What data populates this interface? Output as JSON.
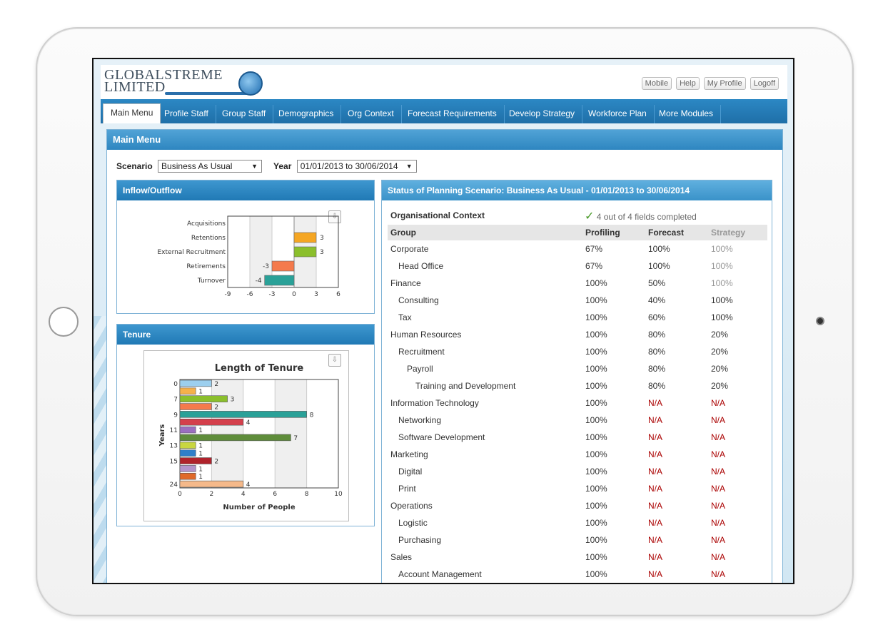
{
  "header": {
    "logo_line1": "GLOBALSTREME",
    "logo_line2": "LIMITED",
    "links": [
      "Mobile",
      "Help",
      "My Profile",
      "Logoff"
    ]
  },
  "nav": {
    "tabs": [
      "Main Menu",
      "Profile Staff",
      "Group Staff",
      "Demographics",
      "Org Context",
      "Forecast Requirements",
      "Develop Strategy",
      "Workforce Plan",
      "More Modules"
    ],
    "active_index": 0
  },
  "main": {
    "title": "Main Menu",
    "scenario_label": "Scenario",
    "scenario_value": "Business As Usual",
    "year_label": "Year",
    "year_value": "01/01/2013 to 30/06/2014"
  },
  "inflow": {
    "title": "Inflow/Outflow",
    "chart_data": {
      "type": "bar",
      "orientation": "horizontal",
      "categories": [
        "Acquisitions",
        "Retentions",
        "External Recruitment",
        "Retirements",
        "Turnover"
      ],
      "values": [
        0,
        3,
        3,
        -3,
        -4
      ],
      "xlim": [
        -9,
        6
      ],
      "xticks": [
        "-9",
        "-6",
        "-3",
        "0",
        "3",
        "6"
      ],
      "colors": [
        "#f39c12",
        "#f5a623",
        "#8bbf2c",
        "#f47a4c",
        "#2aa198"
      ]
    }
  },
  "tenure": {
    "title": "Tenure",
    "chart_data": {
      "type": "bar",
      "orientation": "horizontal",
      "title": "Length of Tenure",
      "xlabel": "Number of People",
      "ylabel": "Years",
      "xlim": [
        0,
        10
      ],
      "xticks": [
        "0",
        "2",
        "4",
        "6",
        "8",
        "10"
      ],
      "bars": [
        {
          "label": "0",
          "value": 2,
          "color": "#9ccfee"
        },
        {
          "label": "",
          "value": 1,
          "color": "#f5b14b"
        },
        {
          "label": "7",
          "value": 3,
          "color": "#8bbf2c"
        },
        {
          "label": "",
          "value": 2,
          "color": "#f47a4c"
        },
        {
          "label": "9",
          "value": 8,
          "color": "#2aa198"
        },
        {
          "label": "",
          "value": 4,
          "color": "#d4404c"
        },
        {
          "label": "11",
          "value": 1,
          "color": "#9b6fc0"
        },
        {
          "label": "",
          "value": 7,
          "color": "#5f8d3b"
        },
        {
          "label": "13",
          "value": 1,
          "color": "#c9d640"
        },
        {
          "label": "",
          "value": 1,
          "color": "#2f7fc9"
        },
        {
          "label": "15",
          "value": 2,
          "color": "#b0232c"
        },
        {
          "label": "",
          "value": 1,
          "color": "#b494cc"
        },
        {
          "label": "",
          "value": 1,
          "color": "#e06a2a"
        },
        {
          "label": "24",
          "value": 4,
          "color": "#f5b98a"
        }
      ]
    }
  },
  "status": {
    "title": "Status of Planning Scenario: Business As Usual - 01/01/2013 to 30/06/2014",
    "org_context_label": "Organisational Context",
    "org_context_status": "4 out of 4 fields completed",
    "columns": [
      "Group",
      "Profiling",
      "Forecast",
      "Strategy"
    ],
    "rows": [
      {
        "group": "Corporate",
        "level": 0,
        "profiling": "67%",
        "forecast": "100%",
        "strategy": "100%",
        "strategy_muted": true
      },
      {
        "group": "Head Office",
        "level": 1,
        "profiling": "67%",
        "forecast": "100%",
        "strategy": "100%",
        "strategy_muted": true
      },
      {
        "group": "Finance",
        "level": 0,
        "profiling": "100%",
        "forecast": "50%",
        "strategy": "100%",
        "strategy_muted": true
      },
      {
        "group": "Consulting",
        "level": 1,
        "profiling": "100%",
        "forecast": "40%",
        "strategy": "100%"
      },
      {
        "group": "Tax",
        "level": 1,
        "profiling": "100%",
        "forecast": "60%",
        "strategy": "100%"
      },
      {
        "group": "Human Resources",
        "level": 0,
        "profiling": "100%",
        "forecast": "80%",
        "strategy": "20%"
      },
      {
        "group": "Recruitment",
        "level": 1,
        "profiling": "100%",
        "forecast": "80%",
        "strategy": "20%"
      },
      {
        "group": "Payroll",
        "level": 2,
        "profiling": "100%",
        "forecast": "80%",
        "strategy": "20%"
      },
      {
        "group": "Training and Development",
        "level": 3,
        "profiling": "100%",
        "forecast": "80%",
        "strategy": "20%"
      },
      {
        "group": "Information Technology",
        "level": 0,
        "profiling": "100%",
        "forecast": "N/A",
        "strategy": "N/A"
      },
      {
        "group": "Networking",
        "level": 1,
        "profiling": "100%",
        "forecast": "N/A",
        "strategy": "N/A"
      },
      {
        "group": "Software Development",
        "level": 1,
        "profiling": "100%",
        "forecast": "N/A",
        "strategy": "N/A"
      },
      {
        "group": "Marketing",
        "level": 0,
        "profiling": "100%",
        "forecast": "N/A",
        "strategy": "N/A"
      },
      {
        "group": "Digital",
        "level": 1,
        "profiling": "100%",
        "forecast": "N/A",
        "strategy": "N/A"
      },
      {
        "group": "Print",
        "level": 1,
        "profiling": "100%",
        "forecast": "N/A",
        "strategy": "N/A"
      },
      {
        "group": "Operations",
        "level": 0,
        "profiling": "100%",
        "forecast": "N/A",
        "strategy": "N/A"
      },
      {
        "group": "Logistic",
        "level": 1,
        "profiling": "100%",
        "forecast": "N/A",
        "strategy": "N/A"
      },
      {
        "group": "Purchasing",
        "level": 1,
        "profiling": "100%",
        "forecast": "N/A",
        "strategy": "N/A"
      },
      {
        "group": "Sales",
        "level": 0,
        "profiling": "100%",
        "forecast": "N/A",
        "strategy": "N/A"
      },
      {
        "group": "Account Management",
        "level": 1,
        "profiling": "100%",
        "forecast": "N/A",
        "strategy": "N/A"
      }
    ]
  }
}
